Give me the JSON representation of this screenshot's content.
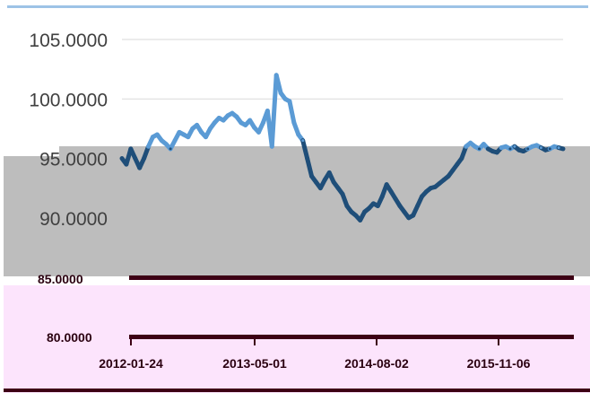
{
  "colors": {
    "top_rule": "#9dc3e6",
    "gridline": "#d9d9d9",
    "gray_block": "#bdbdbd",
    "pink_block": "#fce4fc",
    "dark_bar": "#3d0015",
    "line_upper": "#5b9bd5",
    "line_lower": "#1f4e79",
    "tick_text": "#404040"
  },
  "chart_data": {
    "type": "line",
    "title": "",
    "xlabel": "",
    "ylabel": "",
    "ylim": [
      85,
      105
    ],
    "y_tick_labels": [
      "105.0000",
      "100.0000",
      "95.0000",
      "90.0000",
      "85.0000"
    ],
    "grid": true,
    "legend": "none",
    "lower_axis_label": "80.0000",
    "x_tick_labels": [
      "2012-01-24",
      "2013-05-01",
      "2014-08-02",
      "2015-11-06"
    ],
    "series": [
      {
        "x": [
          0,
          10,
          20,
          30,
          40,
          50,
          60,
          70,
          80,
          90,
          100,
          110,
          120,
          130,
          140,
          150,
          160,
          170,
          180,
          190,
          200,
          210,
          220,
          230,
          240,
          250,
          260,
          270,
          280,
          290,
          300,
          310,
          320,
          330,
          340,
          350,
          360,
          370,
          380,
          390,
          400,
          410,
          420,
          430,
          440,
          450,
          460,
          470,
          480,
          490,
          500,
          510,
          520,
          530,
          540,
          550,
          560,
          570,
          580,
          590,
          600,
          610,
          620,
          630,
          640,
          650,
          660,
          670,
          680,
          690,
          700,
          710,
          720,
          730,
          740,
          750,
          760,
          770,
          780,
          790,
          800,
          810,
          820,
          830,
          840,
          850,
          860,
          870,
          880,
          890,
          900,
          910,
          920,
          930,
          940,
          950,
          960,
          970,
          980,
          990,
          1000
        ],
        "values": [
          95.0,
          94.5,
          95.8,
          95.0,
          94.2,
          95.0,
          96.0,
          96.8,
          97.0,
          96.5,
          96.2,
          95.8,
          96.5,
          97.2,
          97.0,
          96.8,
          97.5,
          97.8,
          97.2,
          96.8,
          97.5,
          98.0,
          98.4,
          98.2,
          98.6,
          98.8,
          98.5,
          98.0,
          97.8,
          98.2,
          97.6,
          97.2,
          98.0,
          99.0,
          96.0,
          102.0,
          100.5,
          100.0,
          99.8,
          98.0,
          97.0,
          96.5,
          95.0,
          93.5,
          93.0,
          92.5,
          93.2,
          93.8,
          93.0,
          92.5,
          92.0,
          91.0,
          90.5,
          90.2,
          89.8,
          90.5,
          90.8,
          91.2,
          91.0,
          91.8,
          92.8,
          92.2,
          91.6,
          91.0,
          90.5,
          90.0,
          90.2,
          91.0,
          91.8,
          92.2,
          92.5,
          92.6,
          92.9,
          93.2,
          93.5,
          94.0,
          94.5,
          95.0,
          96.0,
          96.3,
          96.0,
          95.8,
          96.2,
          95.8,
          95.6,
          95.5,
          95.9,
          96.0,
          95.8,
          96.0,
          95.7,
          95.6,
          95.8,
          96.0,
          96.1,
          95.9,
          95.7,
          95.8,
          96.0,
          95.9,
          95.8
        ]
      }
    ]
  }
}
